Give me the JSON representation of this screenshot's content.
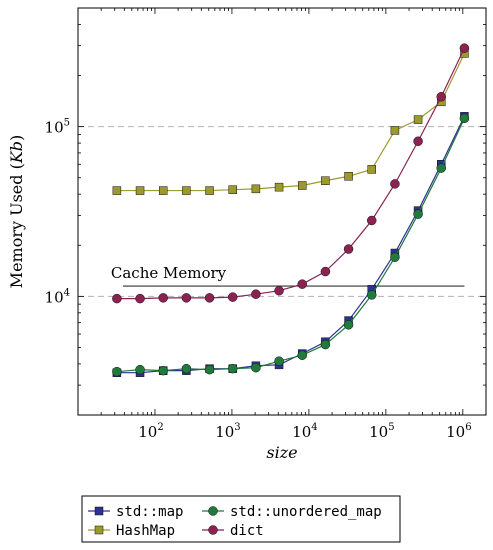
{
  "chart_data": {
    "type": "line",
    "xlabel": "size",
    "ylabel": "Memory Used (Kb)",
    "ylabel_parts": {
      "text": "Memory Used (",
      "unit": "Kb",
      "close": ")"
    },
    "x_scale": "log",
    "y_scale": "log",
    "xlim": [
      10,
      2000000
    ],
    "ylim": [
      2000,
      500000
    ],
    "x_ticks": [
      {
        "base": "10",
        "exp": "2",
        "value": 100
      },
      {
        "base": "10",
        "exp": "3",
        "value": 1000
      },
      {
        "base": "10",
        "exp": "4",
        "value": 10000
      },
      {
        "base": "10",
        "exp": "5",
        "value": 100000
      },
      {
        "base": "10",
        "exp": "6",
        "value": 1000000
      }
    ],
    "y_ticks": [
      {
        "base": "10",
        "exp": "4",
        "value": 10000
      },
      {
        "base": "10",
        "exp": "5",
        "value": 100000
      }
    ],
    "grid": "dashed horizontal at major y ticks",
    "x": [
      32,
      64,
      128,
      256,
      512,
      1024,
      2048,
      4096,
      8192,
      16384,
      32768,
      65536,
      131072,
      262144,
      524288,
      1048576
    ],
    "series": [
      {
        "name": "std::map",
        "color": "#2e3192",
        "marker": "square",
        "values": [
          3550,
          3550,
          3650,
          3650,
          3750,
          3750,
          3900,
          3950,
          4600,
          5400,
          7200,
          11000,
          18000,
          32000,
          60000,
          115000
        ]
      },
      {
        "name": "std::unordered_map",
        "color": "#1f7a3c",
        "marker": "circle",
        "values": [
          3600,
          3700,
          3650,
          3750,
          3700,
          3750,
          3800,
          4150,
          4500,
          5200,
          6800,
          10200,
          17000,
          30500,
          57000,
          112000
        ]
      },
      {
        "name": "HashMap",
        "color": "#9c9a2f",
        "marker": "square",
        "values": [
          42000,
          42000,
          42000,
          42000,
          42000,
          42500,
          43000,
          44000,
          45000,
          48000,
          51000,
          56000,
          95000,
          110000,
          140000,
          270000
        ]
      },
      {
        "name": "dict",
        "color": "#8b2252",
        "marker": "circle",
        "values": [
          9700,
          9700,
          9800,
          9800,
          9800,
          9900,
          10300,
          10800,
          11800,
          14000,
          19000,
          28000,
          46000,
          82000,
          150000,
          290000
        ]
      }
    ],
    "annotations": [
      {
        "text": "Cache Memory",
        "y": 11500,
        "x_start": 32,
        "x_end": 1048576
      }
    ],
    "legend": {
      "placement": "bottom, outside plot",
      "columns": 2,
      "order": [
        "std::map",
        "std::unordered_map",
        "HashMap",
        "dict"
      ]
    }
  }
}
